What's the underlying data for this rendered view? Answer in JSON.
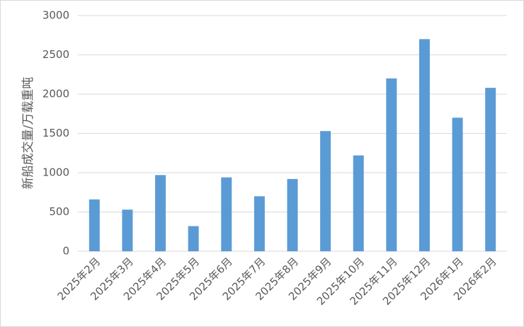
{
  "chart_data": {
    "type": "bar",
    "y_label": "新船成交量/万载重吨",
    "categories": [
      "2025年2月",
      "2025年3月",
      "2025年4月",
      "2025年5月",
      "2025年6月",
      "2025年7月",
      "2025年8月",
      "2025年9月",
      "2025年10月",
      "2025年11月",
      "2025年12月",
      "2026年1月",
      "2026年2月"
    ],
    "values": [
      660,
      530,
      970,
      320,
      940,
      700,
      920,
      1530,
      1220,
      2200,
      2700,
      1700,
      2080
    ],
    "color": "#5b9bd5",
    "ylim": [
      0,
      3000
    ],
    "yticks": [
      0,
      500,
      1000,
      1500,
      2000,
      2500,
      3000
    ],
    "grid": true
  }
}
